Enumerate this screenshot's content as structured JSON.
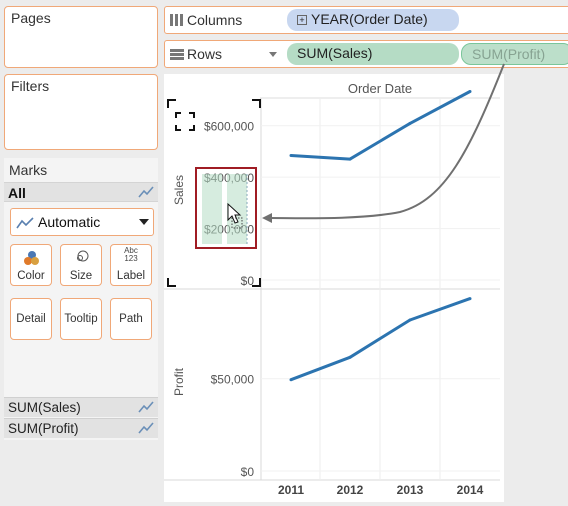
{
  "sidebar": {
    "pages_title": "Pages",
    "filters_title": "Filters",
    "marks": {
      "title": "Marks",
      "all_label": "All",
      "mark_type": "Automatic",
      "buttons": [
        {
          "label": "Color",
          "icon": "color-icon"
        },
        {
          "label": "Size",
          "icon": "size-icon"
        },
        {
          "label": "Label",
          "icon": "label-icon",
          "icon_text_top": "Abc",
          "icon_text_bottom": "123"
        },
        {
          "label": "Detail",
          "icon": "none"
        },
        {
          "label": "Tooltip",
          "icon": "none"
        },
        {
          "label": "Path",
          "icon": "none"
        }
      ],
      "fields": [
        "SUM(Sales)",
        "SUM(Profit)"
      ]
    }
  },
  "shelves": {
    "columns_label": "Columns",
    "columns_pill": "YEAR(Order Date)",
    "rows_label": "Rows",
    "rows_pills": [
      "SUM(Sales)",
      "SUM(Profit)"
    ]
  },
  "colors": {
    "accent_orange": "#f0a878",
    "line_blue": "#2c74b0",
    "pill_blue": "#c8d7f0",
    "pill_green": "#b5dcc5",
    "highlight_red": "#a01c24"
  },
  "chart_data": {
    "type": "line",
    "column_header": "Order Date",
    "categories": [
      "2011",
      "2012",
      "2013",
      "2014"
    ],
    "panes": [
      {
        "axis_label": "Sales",
        "ylim": [
          0,
          700000
        ],
        "ticks": [
          {
            "v": 0,
            "label": "$0"
          },
          {
            "v": 200000,
            "label": "$200,000"
          },
          {
            "v": 400000,
            "label": "$400,000"
          },
          {
            "v": 600000,
            "label": "$600,000"
          }
        ],
        "values": [
          484000,
          470000,
          609000,
          733000
        ]
      },
      {
        "axis_label": "Profit",
        "ylim": [
          0,
          97000
        ],
        "ticks": [
          {
            "v": 0,
            "label": "$0"
          },
          {
            "v": 50000,
            "label": "$50,000"
          }
        ],
        "values": [
          49500,
          61600,
          81800,
          93400
        ]
      }
    ]
  }
}
